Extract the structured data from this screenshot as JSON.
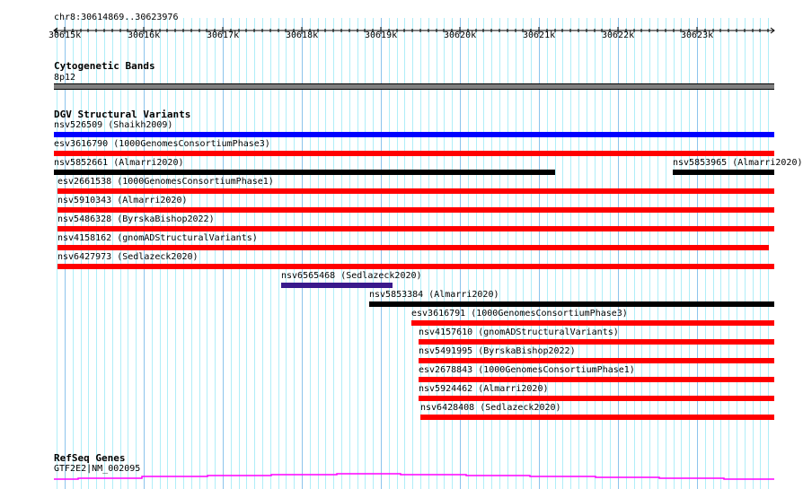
{
  "ruler": {
    "location": "chr8:30614869..30623976",
    "start_kb": 30614.869,
    "end_kb": 30623.976,
    "ticks": [
      "30615k",
      "30616k",
      "30617k",
      "30618k",
      "30619k",
      "30620k",
      "30621k",
      "30622k",
      "30623k"
    ]
  },
  "cyto": {
    "title": "Cytogenetic Bands",
    "band": "8p12",
    "color": "#808080"
  },
  "dgv": {
    "title": "DGV Structural Variants",
    "features": [
      {
        "label": "nsv526509 (Shaikh2009)",
        "start_kb": 30614.869,
        "end_kb": 30623.976,
        "color": "#0000ff"
      },
      {
        "label": "esv3616790 (1000GenomesConsortiumPhase3)",
        "start_kb": 30614.869,
        "end_kb": 30623.976,
        "color": "#ff0000"
      },
      {
        "label": "nsv5852661 (Almarri2020)",
        "start_kb": 30614.869,
        "end_kb": 30621.2,
        "color": "#000000"
      },
      {
        "label": "nsv5853965 (Almarri2020)",
        "start_kb": 30622.69,
        "end_kb": 30623.976,
        "color": "#000000",
        "same_row": true
      },
      {
        "label": "esv2661538 (1000GenomesConsortiumPhase1)",
        "start_kb": 30614.91,
        "end_kb": 30623.976,
        "color": "#ff0000"
      },
      {
        "label": "nsv5910343 (Almarri2020)",
        "start_kb": 30614.91,
        "end_kb": 30623.976,
        "color": "#ff0000"
      },
      {
        "label": "nsv5486328 (ByrskaBishop2022)",
        "start_kb": 30614.91,
        "end_kb": 30623.976,
        "color": "#ff0000"
      },
      {
        "label": "nsv4158162 (gnomADStructuralVariants)",
        "start_kb": 30614.91,
        "end_kb": 30623.91,
        "color": "#ff0000"
      },
      {
        "label": "nsv6427973 (Sedlazeck2020)",
        "start_kb": 30614.91,
        "end_kb": 30623.976,
        "color": "#ff0000"
      },
      {
        "label": "nsv6565468 (Sedlazeck2020)",
        "start_kb": 30617.74,
        "end_kb": 30619.15,
        "color": "#3a1a8c"
      },
      {
        "label": "nsv5853384 (Almarri2020)",
        "start_kb": 30618.85,
        "end_kb": 30623.976,
        "color": "#000000"
      },
      {
        "label": "esv3616791 (1000GenomesConsortiumPhase3)",
        "start_kb": 30619.39,
        "end_kb": 30623.976,
        "color": "#ff0000"
      },
      {
        "label": "nsv4157610 (gnomADStructuralVariants)",
        "start_kb": 30619.48,
        "end_kb": 30623.976,
        "color": "#ff0000"
      },
      {
        "label": "nsv5491995 (ByrskaBishop2022)",
        "start_kb": 30619.48,
        "end_kb": 30623.976,
        "color": "#ff0000"
      },
      {
        "label": "esv2678843 (1000GenomesConsortiumPhase1)",
        "start_kb": 30619.48,
        "end_kb": 30623.976,
        "color": "#ff0000"
      },
      {
        "label": "nsv5924462 (Almarri2020)",
        "start_kb": 30619.48,
        "end_kb": 30623.976,
        "color": "#ff0000"
      },
      {
        "label": "nsv6428408 (Sedlazeck2020)",
        "start_kb": 30619.5,
        "end_kb": 30623.976,
        "color": "#ff0000"
      }
    ]
  },
  "refseq": {
    "title": "RefSeq Genes",
    "gene": "GTF2E2|NM_002095",
    "color": "#ff00ff"
  }
}
